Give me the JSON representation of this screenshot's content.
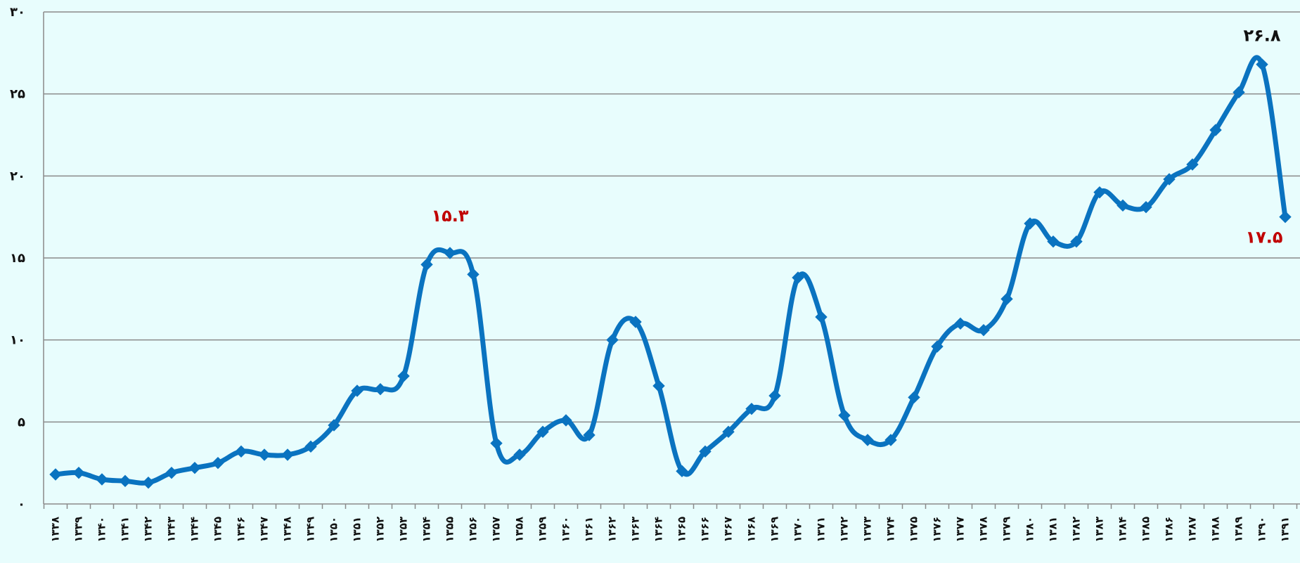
{
  "chart_data": {
    "type": "line",
    "title": "",
    "xlabel": "",
    "ylabel": "",
    "ylim": [
      0,
      30
    ],
    "yticks": [
      {
        "value": 0,
        "label": "۰"
      },
      {
        "value": 5,
        "label": "۵"
      },
      {
        "value": 10,
        "label": "۱۰"
      },
      {
        "value": 15,
        "label": "۱۵"
      },
      {
        "value": 20,
        "label": "۲۰"
      },
      {
        "value": 25,
        "label": "۲۵"
      },
      {
        "value": 30,
        "label": "۳۰"
      }
    ],
    "grid": true,
    "legend": "none",
    "colors": {
      "line": "#0a73c0",
      "grid": "#8a8a8a",
      "axis": "#8a8a8a",
      "background": "#e8fdfd",
      "annotation_max": "#111111",
      "annotation_highlight": "#c00000"
    },
    "categories": [
      "۱۳۳۸",
      "۱۳۳۹",
      "۱۳۴۰",
      "۱۳۴۱",
      "۱۳۴۲",
      "۱۳۴۳",
      "۱۳۴۴",
      "۱۳۴۵",
      "۱۳۴۶",
      "۱۳۴۷",
      "۱۳۴۸",
      "۱۳۴۹",
      "۱۳۵۰",
      "۱۳۵۱",
      "۱۳۵۲",
      "۱۳۵۳",
      "۱۳۵۴",
      "۱۳۵۵",
      "۱۳۵۶",
      "۱۳۵۷",
      "۱۳۵۸",
      "۱۳۵۹",
      "۱۳۶۰",
      "۱۳۶۱",
      "۱۳۶۲",
      "۱۳۶۳",
      "۱۳۶۴",
      "۱۳۶۵",
      "۱۳۶۶",
      "۱۳۶۷",
      "۱۳۶۸",
      "۱۳۶۹",
      "۱۳۷۰",
      "۱۳۷۱",
      "۱۳۷۲",
      "۱۳۷۳",
      "۱۳۷۴",
      "۱۳۷۵",
      "۱۳۷۶",
      "۱۳۷۷",
      "۱۳۷۸",
      "۱۳۷۹",
      "۱۳۸۰",
      "۱۳۸۱",
      "۱۳۸۲",
      "۱۳۸۳",
      "۱۳۸۴",
      "۱۳۸۵",
      "۱۳۸۶",
      "۱۳۸۷",
      "۱۳۸۸",
      "۱۳۸۹",
      "۱۳۹۰",
      "۱۳۹۱"
    ],
    "series": [
      {
        "values": [
          1.8,
          1.9,
          1.5,
          1.4,
          1.3,
          1.9,
          2.2,
          2.5,
          3.2,
          3.0,
          3.0,
          3.5,
          4.8,
          6.9,
          7.0,
          7.8,
          14.6,
          15.3,
          14.0,
          3.7,
          3.0,
          4.4,
          5.1,
          4.2,
          10.0,
          11.1,
          7.2,
          2.0,
          3.2,
          4.4,
          5.8,
          6.6,
          13.8,
          11.4,
          5.4,
          3.9,
          3.9,
          6.5,
          9.6,
          11.0,
          10.6,
          12.5,
          17.1,
          16.0,
          16.0,
          19.0,
          18.2,
          18.1,
          19.8,
          20.7,
          22.8,
          25.1,
          26.8,
          17.5
        ]
      }
    ],
    "annotations": [
      {
        "text": "۱۵.۳",
        "index": 17,
        "color_key": "annotation_highlight"
      },
      {
        "text": "۲۶.۸",
        "index": 52,
        "color_key": "annotation_max"
      },
      {
        "text": "۱۷.۵",
        "index": 53,
        "color_key": "annotation_highlight"
      }
    ]
  }
}
